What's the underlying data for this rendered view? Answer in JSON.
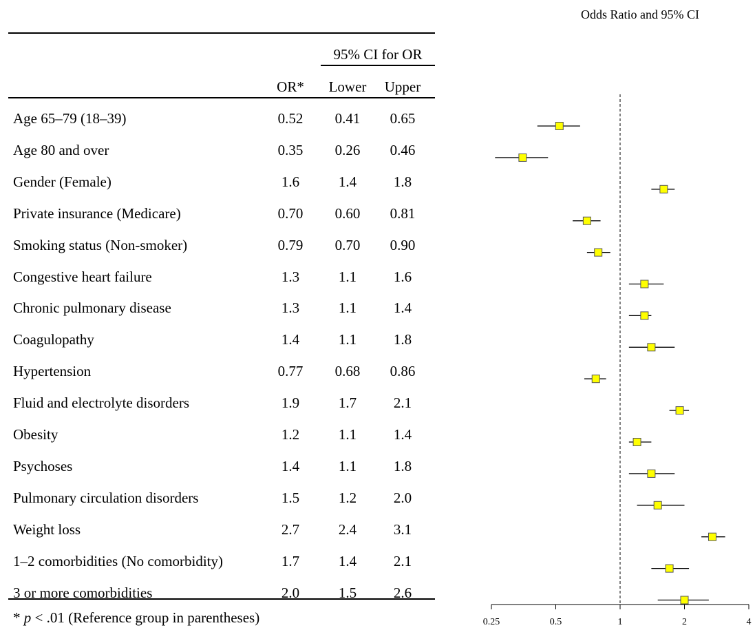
{
  "table": {
    "ci_header": "95% CI for OR",
    "columns": [
      "OR*",
      "Lower",
      "Upper"
    ],
    "rows": [
      {
        "label": "Age 65–79 (18–39)",
        "or": "0.52",
        "lower": "0.41",
        "upper": "0.65"
      },
      {
        "label": "Age 80 and over",
        "or": "0.35",
        "lower": "0.26",
        "upper": "0.46"
      },
      {
        "label": "Gender (Female)",
        "or": "1.6",
        "lower": "1.4",
        "upper": "1.8"
      },
      {
        "label": "Private insurance (Medicare)",
        "or": "0.70",
        "lower": "0.60",
        "upper": "0.81"
      },
      {
        "label": "Smoking status (Non-smoker)",
        "or": "0.79",
        "lower": "0.70",
        "upper": "0.90"
      },
      {
        "label": "Congestive heart failure",
        "or": "1.3",
        "lower": "1.1",
        "upper": "1.6"
      },
      {
        "label": "Chronic pulmonary disease",
        "or": "1.3",
        "lower": "1.1",
        "upper": "1.4"
      },
      {
        "label": "Coagulopathy",
        "or": "1.4",
        "lower": "1.1",
        "upper": "1.8"
      },
      {
        "label": "Hypertension",
        "or": "0.77",
        "lower": "0.68",
        "upper": "0.86"
      },
      {
        "label": "Fluid and electrolyte disorders",
        "or": "1.9",
        "lower": "1.7",
        "upper": "2.1"
      },
      {
        "label": "Obesity",
        "or": "1.2",
        "lower": "1.1",
        "upper": "1.4"
      },
      {
        "label": "Psychoses",
        "or": "1.4",
        "lower": "1.1",
        "upper": "1.8"
      },
      {
        "label": "Pulmonary circulation disorders",
        "or": "1.5",
        "lower": "1.2",
        "upper": "2.0"
      },
      {
        "label": "Weight loss",
        "or": "2.7",
        "lower": "2.4",
        "upper": "3.1"
      },
      {
        "label": "1–2 comorbidities (No comorbidity)",
        "or": "1.7",
        "lower": "1.4",
        "upper": "2.1"
      },
      {
        "label": "3 or more comorbidities",
        "or": "2.0",
        "lower": "1.5",
        "upper": "2.6"
      }
    ],
    "footnote_star": "* ",
    "footnote_p": "p",
    "footnote_rest": " < .01 (Reference group in parentheses)"
  },
  "chart_data": {
    "type": "scatter",
    "title": "Odds Ratio and 95% CI",
    "xscale": "log2",
    "xlim": [
      0.25,
      4
    ],
    "xticks": [
      0.25,
      0.5,
      1,
      2,
      4
    ],
    "xtick_labels": [
      "0.25",
      "0.5",
      "1",
      "2",
      "4"
    ],
    "reference_line": 1,
    "marker_color": "#ffff00",
    "marker_edge": "#555555",
    "points": [
      {
        "or": 0.52,
        "lower": 0.41,
        "upper": 0.65
      },
      {
        "or": 0.35,
        "lower": 0.26,
        "upper": 0.46
      },
      {
        "or": 1.6,
        "lower": 1.4,
        "upper": 1.8
      },
      {
        "or": 0.7,
        "lower": 0.6,
        "upper": 0.81
      },
      {
        "or": 0.79,
        "lower": 0.7,
        "upper": 0.9
      },
      {
        "or": 1.3,
        "lower": 1.1,
        "upper": 1.6
      },
      {
        "or": 1.3,
        "lower": 1.1,
        "upper": 1.4
      },
      {
        "or": 1.4,
        "lower": 1.1,
        "upper": 1.8
      },
      {
        "or": 0.77,
        "lower": 0.68,
        "upper": 0.86
      },
      {
        "or": 1.9,
        "lower": 1.7,
        "upper": 2.1
      },
      {
        "or": 1.2,
        "lower": 1.1,
        "upper": 1.4
      },
      {
        "or": 1.4,
        "lower": 1.1,
        "upper": 1.8
      },
      {
        "or": 1.5,
        "lower": 1.2,
        "upper": 2.0
      },
      {
        "or": 2.7,
        "lower": 2.4,
        "upper": 3.1
      },
      {
        "or": 1.7,
        "lower": 1.4,
        "upper": 2.1
      },
      {
        "or": 2.0,
        "lower": 1.5,
        "upper": 2.6
      }
    ]
  }
}
